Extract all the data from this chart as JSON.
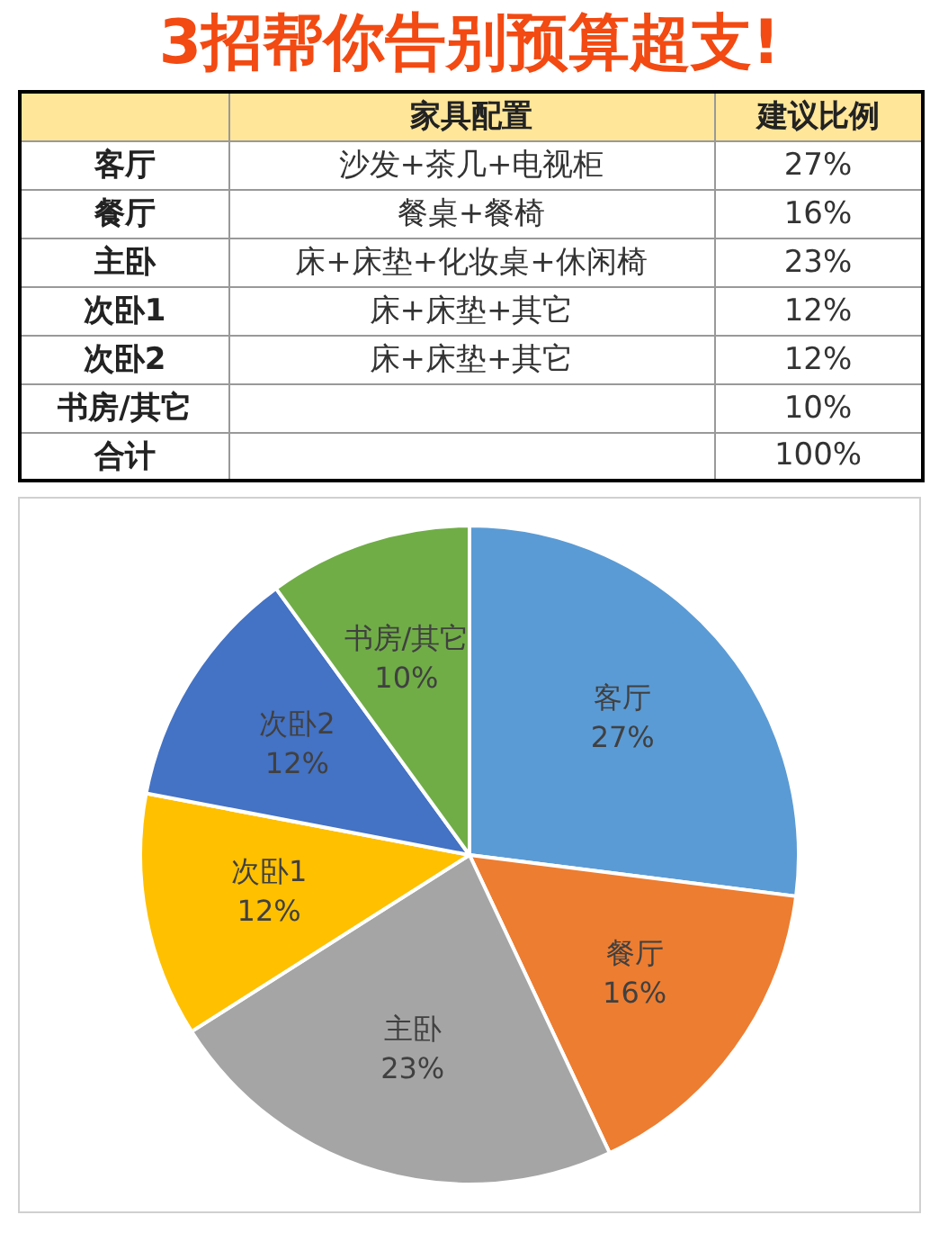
{
  "chart_data": [
    {
      "type": "other",
      "title": "3招帮你告别预算超支!",
      "categories": [
        null,
        "家具配置",
        "建议比例"
      ],
      "y_categories": [
        "客厅",
        "餐厅",
        "主卧",
        "次卧1",
        "次卧2",
        "书房/其它",
        "合计"
      ],
      "cell_labels": [
        [
          "沙发+茶几+电视柜",
          "27%"
        ],
        [
          "餐桌+餐椅",
          "16%"
        ],
        [
          "床+床垫+化妆桌+休闲椅",
          "23%"
        ],
        [
          "床+床垫+其它",
          "12%"
        ],
        [
          "床+床垫+其它",
          "12%"
        ],
        [
          null,
          "10%"
        ],
        [
          null,
          "100%"
        ]
      ]
    },
    {
      "type": "pie",
      "categories": [
        "客厅",
        "餐厅",
        "主卧",
        "次卧1",
        "次卧2",
        "书房/其它"
      ],
      "values": [
        27,
        16,
        23,
        12,
        12,
        10
      ],
      "value_labels": [
        "27%",
        "16%",
        "23%",
        "12%",
        "12%",
        "10%"
      ],
      "colors": [
        "#5b9bd5",
        "#ed7d31",
        "#a5a5a5",
        "#ffc000",
        "#4472c4",
        "#70ad47"
      ]
    }
  ]
}
